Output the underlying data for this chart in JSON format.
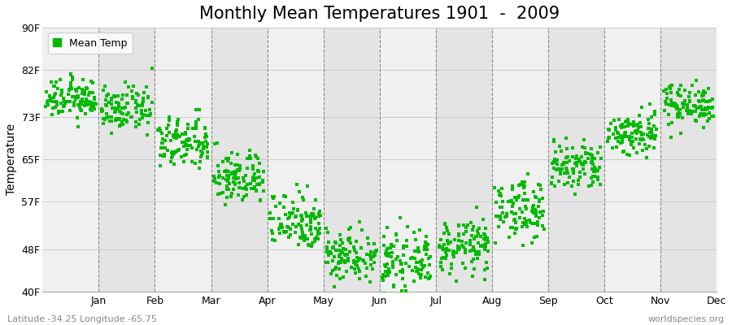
{
  "title": "Monthly Mean Temperatures 1901  -  2009",
  "ylabel": "Temperature",
  "yticks": [
    40,
    48,
    57,
    65,
    73,
    82,
    90
  ],
  "ytick_labels": [
    "40F",
    "48F",
    "57F",
    "65F",
    "73F",
    "82F",
    "90F"
  ],
  "ylim": [
    40,
    90
  ],
  "months": [
    "Jan",
    "Feb",
    "Mar",
    "Apr",
    "May",
    "Jun",
    "Jul",
    "Aug",
    "Sep",
    "Oct",
    "Nov",
    "Dec"
  ],
  "dot_color": "#00bb00",
  "background_color": "#ffffff",
  "band_colors": [
    "#f0f0f0",
    "#e4e4e4"
  ],
  "grid_color": "#cccccc",
  "legend_label": "Mean Temp",
  "footer_left": "Latitude -34.25 Longitude -65.75",
  "footer_right": "worldspecies.org",
  "title_fontsize": 15,
  "label_fontsize": 9,
  "footer_fontsize": 8,
  "monthly_means": [
    76.5,
    74.5,
    68.0,
    61.5,
    53.5,
    47.0,
    45.5,
    48.5,
    55.5,
    63.5,
    70.0,
    75.5
  ],
  "monthly_stds": [
    1.8,
    2.0,
    2.5,
    2.5,
    2.8,
    2.5,
    2.5,
    2.5,
    2.8,
    2.5,
    2.2,
    2.0
  ],
  "n_years": 109
}
